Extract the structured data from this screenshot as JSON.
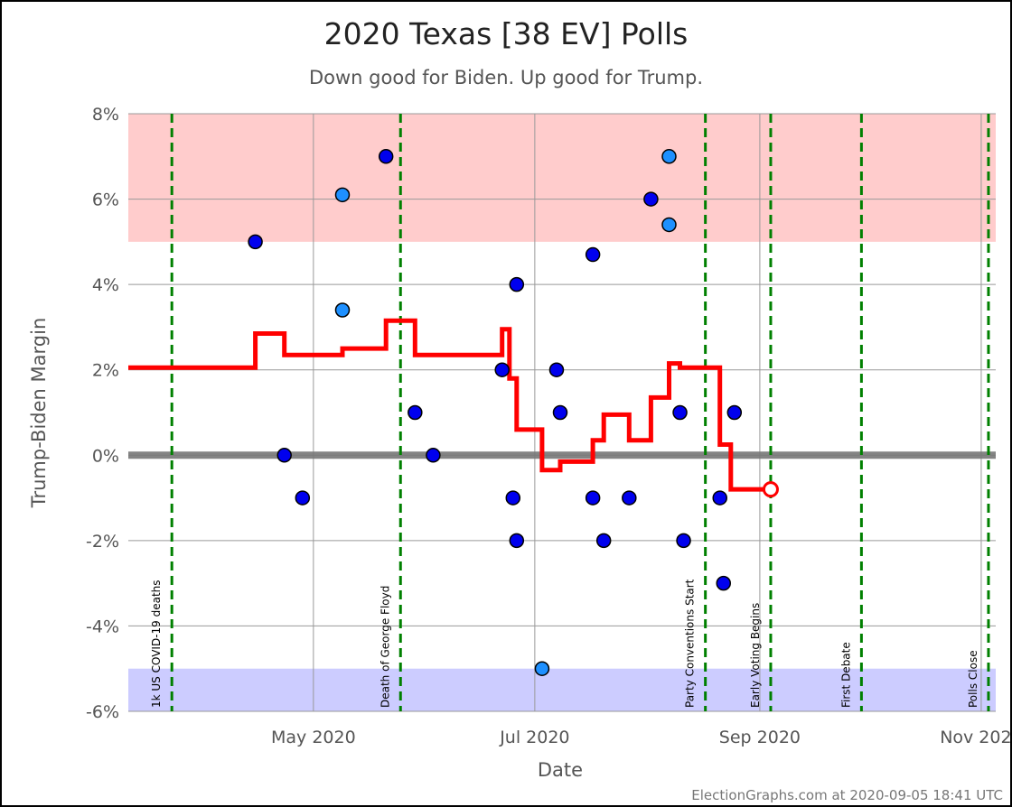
{
  "chart_data": {
    "type": "scatter",
    "title": "2020 Texas [38 EV] Polls",
    "subtitle": "Down good for Biden. Up good for Trump.",
    "xlabel": "Date",
    "ylabel": "Trump-Biden Margin",
    "credit": "ElectionGraphs.com at 2020-09-05 18:41 UTC",
    "xlim": [
      "2020-03-11",
      "2020-11-05"
    ],
    "ylim": [
      -6,
      8
    ],
    "yticks": [
      {
        "value": 8,
        "label": "8%"
      },
      {
        "value": 6,
        "label": "6%"
      },
      {
        "value": 4,
        "label": "4%"
      },
      {
        "value": 2,
        "label": "2%"
      },
      {
        "value": 0,
        "label": "0%"
      },
      {
        "value": -2,
        "label": "-2%"
      },
      {
        "value": -4,
        "label": "-4%"
      },
      {
        "value": -6,
        "label": "-6%"
      }
    ],
    "xticks": [
      {
        "date": "2020-05-01",
        "label": "May 2020"
      },
      {
        "date": "2020-07-01",
        "label": "Jul 2020"
      },
      {
        "date": "2020-09-01",
        "label": "Sep 2020"
      },
      {
        "date": "2020-11-01",
        "label": "Nov 2020"
      }
    ],
    "bands": [
      {
        "from": 5,
        "to": 8,
        "color": "#ffcccc"
      },
      {
        "from": -6,
        "to": -5,
        "color": "#ccccff"
      }
    ],
    "events": [
      {
        "date": "2020-03-23",
        "label": "1k US COVID-19 deaths"
      },
      {
        "date": "2020-05-25",
        "label": "Death of George Floyd"
      },
      {
        "date": "2020-08-17",
        "label": "Party Conventions Start"
      },
      {
        "date": "2020-09-04",
        "label": "Early Voting Begins"
      },
      {
        "date": "2020-09-29",
        "label": "First Debate"
      },
      {
        "date": "2020-11-03",
        "label": "Polls Close"
      }
    ],
    "series": [
      {
        "kind": "polls",
        "points": [
          {
            "date": "2020-04-15",
            "value": 5.0,
            "color": "#0000ee"
          },
          {
            "date": "2020-04-23",
            "value": 0.0,
            "color": "#0000ee"
          },
          {
            "date": "2020-04-28",
            "value": -1.0,
            "color": "#0000ee"
          },
          {
            "date": "2020-05-09",
            "value": 6.1,
            "color": "#1e90ff"
          },
          {
            "date": "2020-05-09",
            "value": 3.4,
            "color": "#1e90ff"
          },
          {
            "date": "2020-05-21",
            "value": 7.0,
            "color": "#0000ee"
          },
          {
            "date": "2020-05-29",
            "value": 1.0,
            "color": "#0000ee"
          },
          {
            "date": "2020-06-03",
            "value": 0.0,
            "color": "#0000ee"
          },
          {
            "date": "2020-06-22",
            "value": 2.0,
            "color": "#0000ee"
          },
          {
            "date": "2020-06-25",
            "value": -1.0,
            "color": "#0000ee"
          },
          {
            "date": "2020-06-26",
            "value": 4.0,
            "color": "#0000ee"
          },
          {
            "date": "2020-06-26",
            "value": -2.0,
            "color": "#0000ee"
          },
          {
            "date": "2020-07-03",
            "value": -5.0,
            "color": "#1e90ff"
          },
          {
            "date": "2020-07-07",
            "value": 2.0,
            "color": "#0000ee"
          },
          {
            "date": "2020-07-08",
            "value": 1.0,
            "color": "#0000ee"
          },
          {
            "date": "2020-07-17",
            "value": 4.7,
            "color": "#0000ee"
          },
          {
            "date": "2020-07-17",
            "value": -1.0,
            "color": "#0000ee"
          },
          {
            "date": "2020-07-20",
            "value": -2.0,
            "color": "#0000ee"
          },
          {
            "date": "2020-07-27",
            "value": -1.0,
            "color": "#0000ee"
          },
          {
            "date": "2020-08-02",
            "value": 6.0,
            "color": "#0000ee"
          },
          {
            "date": "2020-08-07",
            "value": 7.0,
            "color": "#1e90ff"
          },
          {
            "date": "2020-08-07",
            "value": 5.4,
            "color": "#1e90ff"
          },
          {
            "date": "2020-08-10",
            "value": 1.0,
            "color": "#0000ee"
          },
          {
            "date": "2020-08-11",
            "value": -2.0,
            "color": "#0000ee"
          },
          {
            "date": "2020-08-21",
            "value": -1.0,
            "color": "#0000ee"
          },
          {
            "date": "2020-08-22",
            "value": -3.0,
            "color": "#0000ee"
          },
          {
            "date": "2020-08-25",
            "value": 1.0,
            "color": "#0000ee"
          }
        ]
      },
      {
        "kind": "average",
        "color": "#ff0000",
        "points": [
          {
            "date": "2020-03-11",
            "value": 2.05
          },
          {
            "date": "2020-04-15",
            "value": 2.05
          },
          {
            "date": "2020-04-15",
            "value": 2.85
          },
          {
            "date": "2020-04-23",
            "value": 2.85
          },
          {
            "date": "2020-04-23",
            "value": 2.35
          },
          {
            "date": "2020-05-09",
            "value": 2.35
          },
          {
            "date": "2020-05-09",
            "value": 2.5
          },
          {
            "date": "2020-05-21",
            "value": 2.5
          },
          {
            "date": "2020-05-21",
            "value": 3.15
          },
          {
            "date": "2020-05-29",
            "value": 3.15
          },
          {
            "date": "2020-05-29",
            "value": 2.35
          },
          {
            "date": "2020-06-22",
            "value": 2.35
          },
          {
            "date": "2020-06-22",
            "value": 2.95
          },
          {
            "date": "2020-06-24",
            "value": 2.95
          },
          {
            "date": "2020-06-24",
            "value": 1.8
          },
          {
            "date": "2020-06-26",
            "value": 1.8
          },
          {
            "date": "2020-06-26",
            "value": 0.6
          },
          {
            "date": "2020-07-03",
            "value": 0.6
          },
          {
            "date": "2020-07-03",
            "value": -0.35
          },
          {
            "date": "2020-07-08",
            "value": -0.35
          },
          {
            "date": "2020-07-08",
            "value": -0.15
          },
          {
            "date": "2020-07-17",
            "value": -0.15
          },
          {
            "date": "2020-07-17",
            "value": 0.35
          },
          {
            "date": "2020-07-20",
            "value": 0.35
          },
          {
            "date": "2020-07-20",
            "value": 0.95
          },
          {
            "date": "2020-07-27",
            "value": 0.95
          },
          {
            "date": "2020-07-27",
            "value": 0.35
          },
          {
            "date": "2020-08-02",
            "value": 0.35
          },
          {
            "date": "2020-08-02",
            "value": 1.35
          },
          {
            "date": "2020-08-07",
            "value": 1.35
          },
          {
            "date": "2020-08-07",
            "value": 2.15
          },
          {
            "date": "2020-08-10",
            "value": 2.15
          },
          {
            "date": "2020-08-10",
            "value": 2.05
          },
          {
            "date": "2020-08-21",
            "value": 2.05
          },
          {
            "date": "2020-08-21",
            "value": 0.25
          },
          {
            "date": "2020-08-24",
            "value": 0.25
          },
          {
            "date": "2020-08-24",
            "value": -0.8
          },
          {
            "date": "2020-09-04",
            "value": -0.8
          }
        ],
        "endpoint": {
          "date": "2020-09-04",
          "value": -0.8
        }
      }
    ]
  }
}
